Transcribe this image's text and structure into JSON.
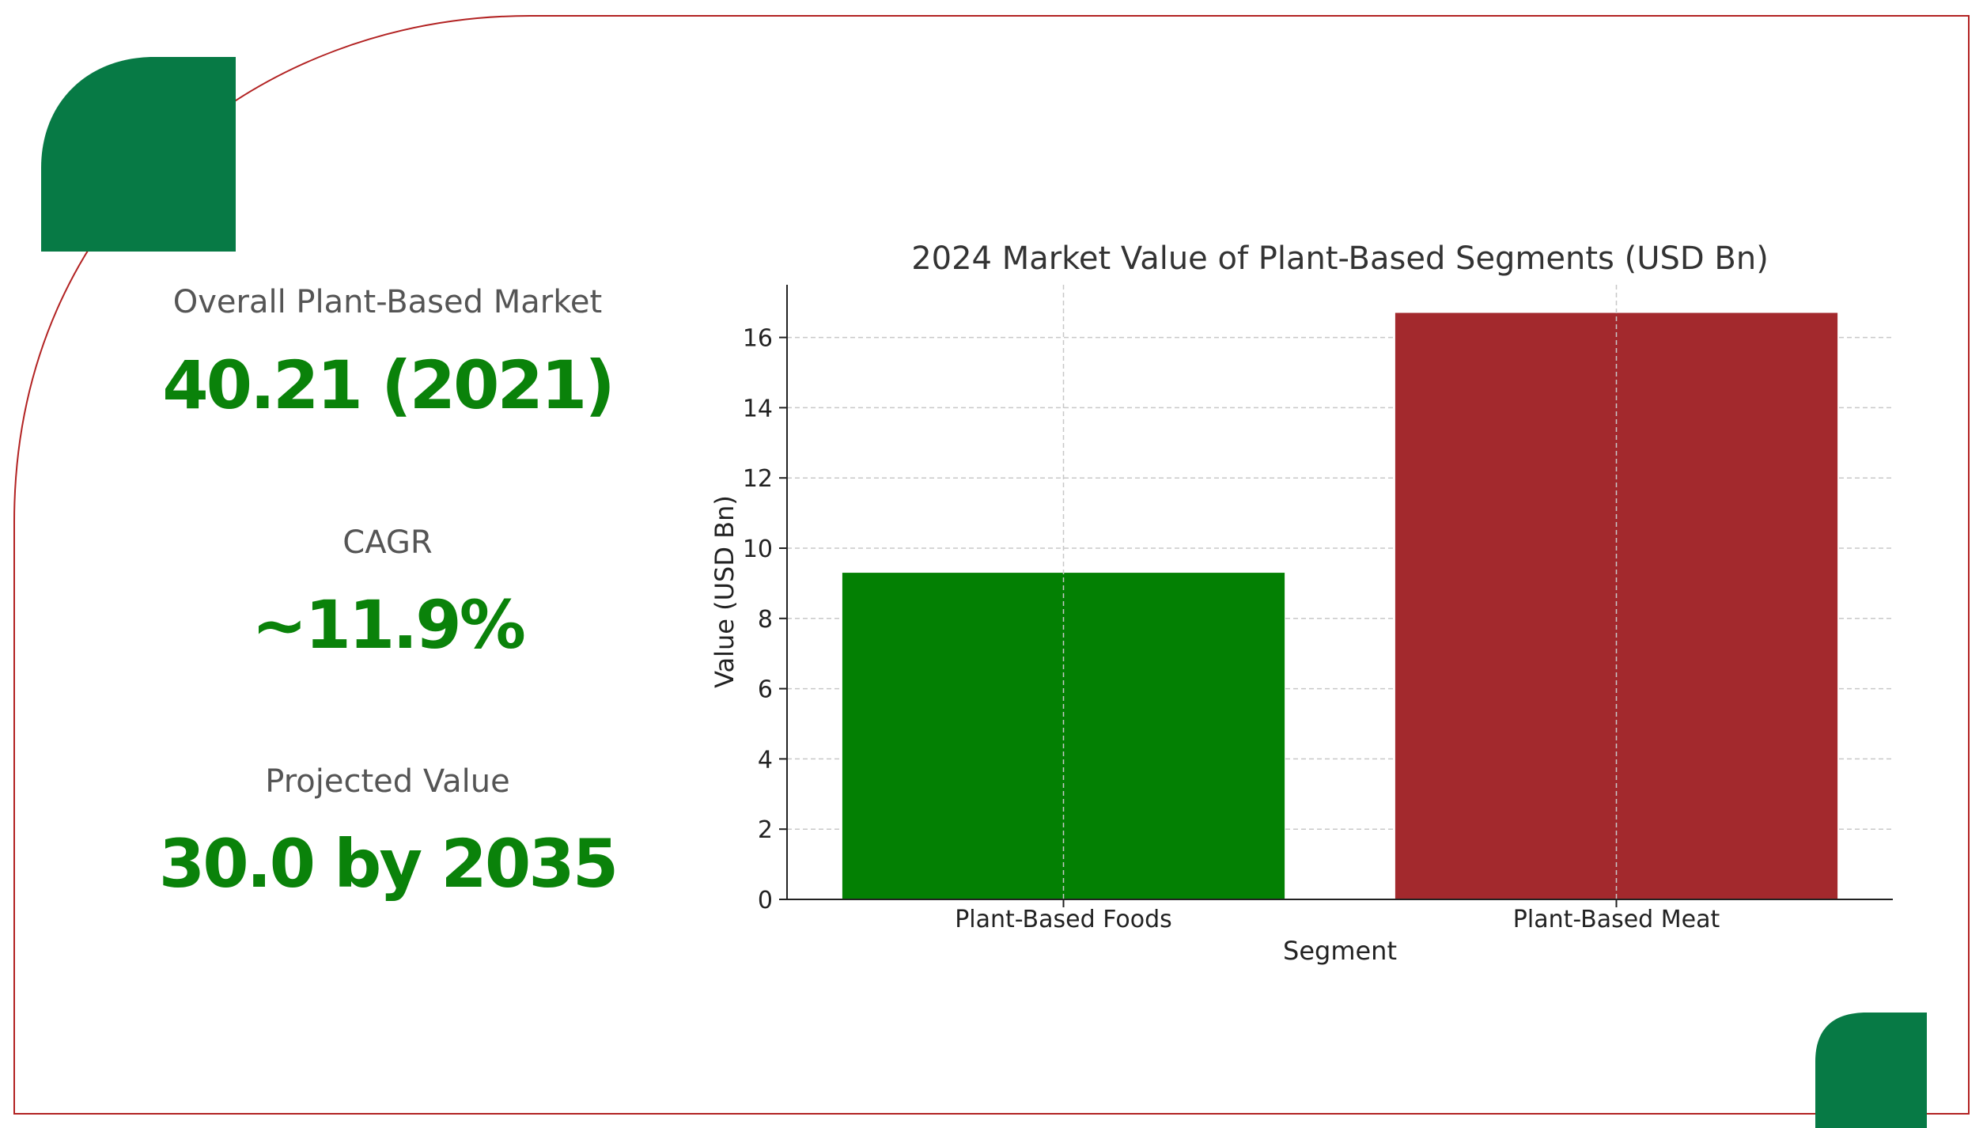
{
  "stats": {
    "overall_label": "Overall Plant-Based Market",
    "overall_value": "40.21 (2021)",
    "cagr_label": "CAGR",
    "cagr_value": "~11.9%",
    "projected_label": "Projected Value",
    "projected_value": "30.0 by 2035"
  },
  "colors": {
    "frame_border": "#b22222",
    "corner_green": "#077a45",
    "stat_value": "#0a820a",
    "stat_label": "#555555"
  },
  "chart_data": {
    "type": "bar",
    "title": "2024 Market Value of Plant-Based Segments (USD Bn)",
    "xlabel": "Segment",
    "ylabel": "Value (USD Bn)",
    "categories": [
      "Plant-Based Foods",
      "Plant-Based Meat"
    ],
    "values": [
      9.3,
      16.7
    ],
    "bar_colors": [
      "#038003",
      "#a3292d"
    ],
    "ylim": [
      0,
      17.5
    ],
    "yticks": [
      0,
      2,
      4,
      6,
      8,
      10,
      12,
      14,
      16
    ],
    "grid": true,
    "legend": "none"
  }
}
